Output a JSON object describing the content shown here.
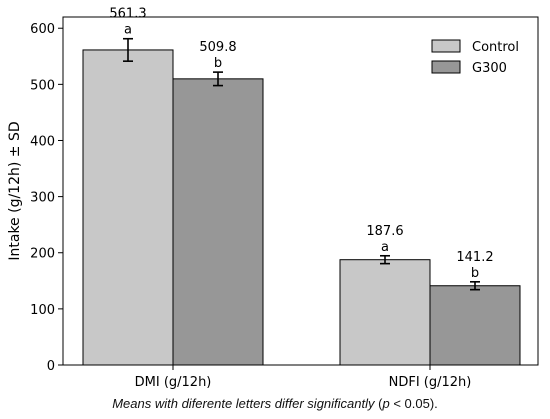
{
  "chart_data": {
    "type": "bar",
    "categories": [
      "DMI (g/12h)",
      "NDFI (g/12h)"
    ],
    "series": [
      {
        "name": "Control",
        "values": [
          561.3,
          187.6
        ],
        "sd": [
          20,
          7
        ],
        "letters": [
          "a",
          "a"
        ],
        "labels": [
          "561.3",
          "187.6"
        ],
        "color": "#c8c8c8"
      },
      {
        "name": "G300",
        "values": [
          509.8,
          141.2
        ],
        "sd": [
          12,
          7
        ],
        "letters": [
          "b",
          "b"
        ],
        "labels": [
          "509.8",
          "141.2"
        ],
        "color": "#979797"
      }
    ],
    "title": "",
    "xlabel": "",
    "ylabel": "Intake (g/12h) ± SD",
    "ylim": [
      0,
      620
    ],
    "yticks": [
      0,
      100,
      200,
      300,
      400,
      500,
      600
    ],
    "grid": false,
    "legend": "top-right"
  },
  "caption": {
    "part1": "Means with diferente letters differ significantly",
    "part2": " (",
    "p": "p",
    "part3": " < 0.05)."
  }
}
